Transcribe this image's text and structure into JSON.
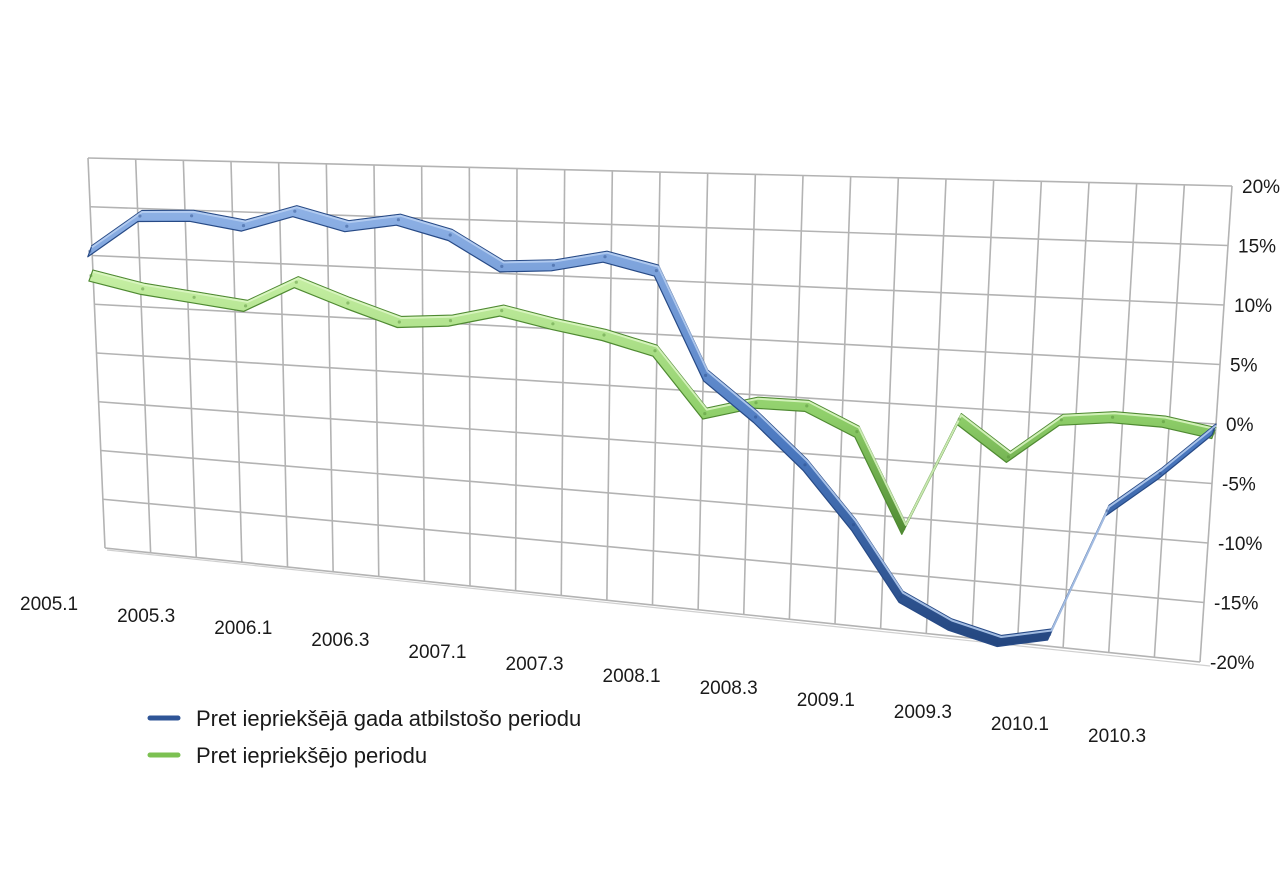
{
  "chart_data": {
    "type": "line",
    "categories": [
      "2005.1",
      "2005.2",
      "2005.3",
      "2005.4",
      "2006.1",
      "2006.2",
      "2006.3",
      "2006.4",
      "2007.1",
      "2007.2",
      "2007.3",
      "2007.4",
      "2008.1",
      "2008.2",
      "2008.3",
      "2008.4",
      "2009.1",
      "2009.2",
      "2009.3",
      "2009.4",
      "2010.1",
      "2010.2",
      "2010.3"
    ],
    "x_tick_labels": [
      "2005.1",
      "2005.3",
      "2006.1",
      "2006.3",
      "2007.1",
      "2007.3",
      "2008.1",
      "2008.3",
      "2009.1",
      "2009.3",
      "2010.1",
      "2010.3"
    ],
    "y_ticks": [
      20,
      15,
      10,
      5,
      0,
      -5,
      -10,
      -15,
      -20
    ],
    "y_tick_labels": [
      "20%",
      "15%",
      "10%",
      "5%",
      "0%",
      "-5%",
      "-10%",
      "-15%",
      "-20%"
    ],
    "ylim": [
      -20,
      20
    ],
    "grid": true,
    "legend_position": "bottom-left",
    "series": [
      {
        "name": "Pret iepriekšējā gada atbilstošo periodu",
        "color": "#4a78bf",
        "values": [
          11,
          14.8,
          15,
          14.2,
          15.8,
          14.5,
          15.3,
          14,
          11.2,
          11.5,
          12.5,
          11.4,
          2,
          -1.5,
          -5.5,
          -10.5,
          -16.5,
          -18.5,
          -19.5,
          -18.5,
          -7.5,
          -4,
          0
        ]
      },
      {
        "name": "Pret iepriekšējo periodu",
        "color": "#8fcf6a",
        "values": [
          8.5,
          7.4,
          6.8,
          6.2,
          8.8,
          7,
          5.4,
          5.8,
          7,
          6,
          5.2,
          4,
          -1.5,
          -0.2,
          -0.2,
          -2.2,
          -10.5,
          -0.5,
          -3.5,
          0,
          0.5,
          0.4,
          -0.3
        ]
      }
    ]
  }
}
